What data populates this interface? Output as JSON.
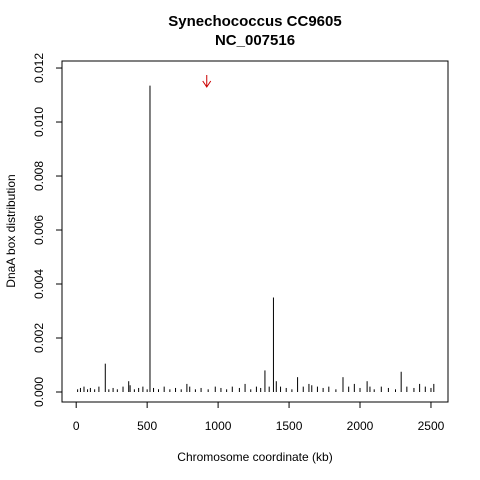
{
  "chart_data": {
    "type": "spike",
    "title": "Synechococcus CC9605",
    "subtitle": "NC_007516",
    "xlabel": "Chromosome coordinate (kb)",
    "ylabel": "DnaA box distribution",
    "color": "#000000",
    "x": [
      10,
      30,
      55,
      80,
      100,
      130,
      160,
      205,
      230,
      260,
      290,
      330,
      370,
      380,
      410,
      440,
      470,
      500,
      520,
      545,
      580,
      620,
      660,
      700,
      740,
      780,
      800,
      840,
      880,
      930,
      980,
      1020,
      1060,
      1100,
      1150,
      1190,
      1230,
      1270,
      1300,
      1330,
      1360,
      1390,
      1410,
      1440,
      1480,
      1520,
      1560,
      1600,
      1640,
      1660,
      1700,
      1740,
      1780,
      1830,
      1880,
      1920,
      1960,
      2000,
      2050,
      2070,
      2100,
      2150,
      2200,
      2250,
      2290,
      2330,
      2380,
      2420,
      2460,
      2500,
      2520
    ],
    "values": [
      0.0001,
      0.00015,
      0.0002,
      0.0001,
      0.00015,
      0.0001,
      0.0002,
      0.00105,
      0.0001,
      0.00015,
      0.0001,
      0.0002,
      0.0004,
      0.00025,
      0.0001,
      0.00015,
      0.0002,
      0.0001,
      0.01135,
      0.00015,
      0.0001,
      0.0002,
      0.0001,
      0.00015,
      0.0001,
      0.0003,
      0.0002,
      0.0001,
      0.00015,
      0.0001,
      0.0002,
      0.00015,
      0.0001,
      0.0002,
      0.00015,
      0.0003,
      0.0001,
      0.0002,
      0.00015,
      0.0008,
      0.0002,
      0.0035,
      0.0004,
      0.0002,
      0.00015,
      0.0001,
      0.00055,
      0.0002,
      0.0003,
      0.00025,
      0.0002,
      0.00015,
      0.0002,
      0.0001,
      0.00055,
      0.0002,
      0.0003,
      0.00015,
      0.0004,
      0.0002,
      0.0001,
      0.0002,
      0.00015,
      0.0001,
      0.00075,
      0.0002,
      0.00015,
      0.0003,
      0.0002,
      0.00015,
      0.0003
    ],
    "xlim": [
      -100,
      2620
    ],
    "ylim": [
      -0.00037,
      0.01226
    ],
    "xticks": [
      0,
      500,
      1000,
      1500,
      2000,
      2500
    ],
    "yticks": [
      {
        "value": 0,
        "label": "0.000"
      },
      {
        "value": 0.002,
        "label": "0.002"
      },
      {
        "value": 0.004,
        "label": "0.004"
      },
      {
        "value": 0.006,
        "label": "0.006"
      },
      {
        "value": 0.008,
        "label": "0.008"
      },
      {
        "value": 0.01,
        "label": "0.010"
      },
      {
        "value": 0.012,
        "label": "0.012"
      }
    ],
    "marker": {
      "x": 920,
      "color": "#cc0000"
    }
  }
}
